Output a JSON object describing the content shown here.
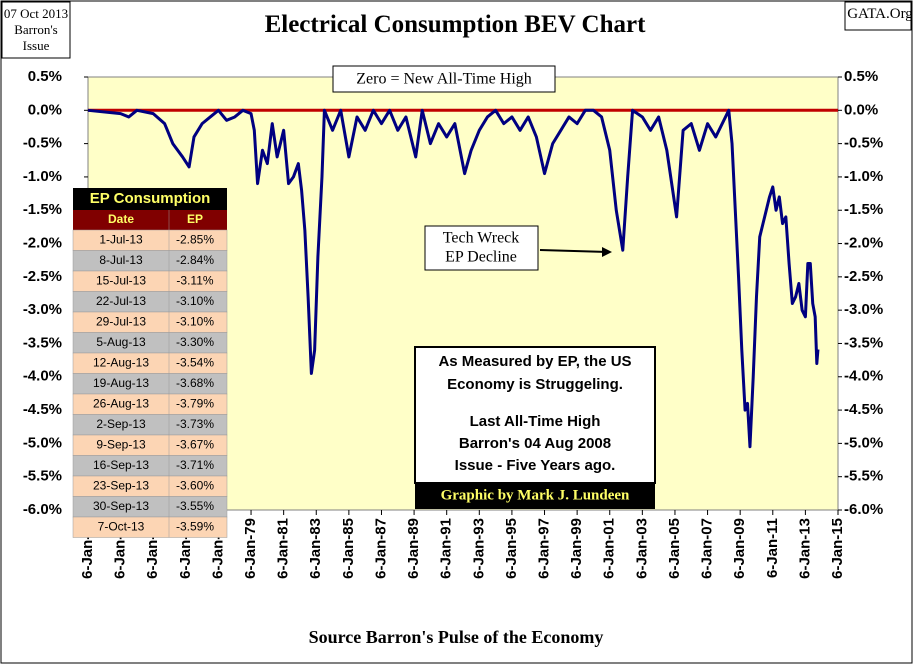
{
  "chart_data": {
    "type": "line",
    "title": "Electrical Consumption BEV Chart",
    "corner_note": [
      "07 Oct 2013",
      "Barron's",
      "Issue"
    ],
    "source_note": "GATA.Org",
    "xlabel": "Source Barron's Pulse of the Economy",
    "zero_note": "Zero = New All-Time High",
    "tech_note": [
      "Tech Wreck",
      "EP Decline"
    ],
    "box_text": [
      "As Measured by EP, the US",
      "Economy is Struggeling.",
      "Last All-Time High",
      "Barron's 04 Aug 2008",
      "Issue - Five Years ago."
    ],
    "credit": "Graphic by Mark J. Lundeen",
    "hline": 0,
    "hline_color": "#c00000",
    "xlim": [
      1969,
      2015
    ],
    "xticks": [
      {
        "value": 1969,
        "label": "6-Jan-69"
      },
      {
        "value": 1971,
        "label": "6-Jan-71"
      },
      {
        "value": 1973,
        "label": "6-Jan-73"
      },
      {
        "value": 1975,
        "label": "6-Jan-75"
      },
      {
        "value": 1977,
        "label": "6-Jan-77"
      },
      {
        "value": 1979,
        "label": "6-Jan-79"
      },
      {
        "value": 1981,
        "label": "6-Jan-81"
      },
      {
        "value": 1983,
        "label": "6-Jan-83"
      },
      {
        "value": 1985,
        "label": "6-Jan-85"
      },
      {
        "value": 1987,
        "label": "6-Jan-87"
      },
      {
        "value": 1989,
        "label": "6-Jan-89"
      },
      {
        "value": 1991,
        "label": "6-Jan-91"
      },
      {
        "value": 1993,
        "label": "6-Jan-93"
      },
      {
        "value": 1995,
        "label": "6-Jan-95"
      },
      {
        "value": 1997,
        "label": "6-Jan-97"
      },
      {
        "value": 1999,
        "label": "6-Jan-99"
      },
      {
        "value": 2001,
        "label": "6-Jan-01"
      },
      {
        "value": 2003,
        "label": "6-Jan-03"
      },
      {
        "value": 2005,
        "label": "6-Jan-05"
      },
      {
        "value": 2007,
        "label": "6-Jan-07"
      },
      {
        "value": 2009,
        "label": "6-Jan-09"
      },
      {
        "value": 2011,
        "label": "6-Jan-11"
      },
      {
        "value": 2013,
        "label": "6-Jan-13"
      },
      {
        "value": 2015,
        "label": "6-Jan-15"
      }
    ],
    "ylim": [
      -6.0,
      0.5
    ],
    "yticks": [
      {
        "value": 0.5,
        "label": "0.5%"
      },
      {
        "value": 0,
        "label": "0.0%"
      },
      {
        "value": -0.5,
        "label": "-0.5%"
      },
      {
        "value": -1,
        "label": "-1.0%"
      },
      {
        "value": -1.5,
        "label": "-1.5%"
      },
      {
        "value": -2,
        "label": "-2.0%"
      },
      {
        "value": -2.5,
        "label": "-2.5%"
      },
      {
        "value": -3,
        "label": "-3.0%"
      },
      {
        "value": -3.5,
        "label": "-3.5%"
      },
      {
        "value": -4,
        "label": "-4.0%"
      },
      {
        "value": -4.5,
        "label": "-4.5%"
      },
      {
        "value": -5,
        "label": "-5.0%"
      },
      {
        "value": -5.5,
        "label": "-5.5%"
      },
      {
        "value": -6,
        "label": "-6.0%"
      }
    ],
    "series": [
      {
        "name": "EP",
        "color": "#000080",
        "x": [
          1969,
          1971,
          1971.5,
          1972,
          1973,
          1973.7,
          1974.2,
          1974.8,
          1975.2,
          1975.5,
          1976,
          1976.5,
          1977,
          1977.5,
          1978,
          1978.5,
          1979,
          1979.2,
          1979.4,
          1979.7,
          1980,
          1980.3,
          1980.6,
          1981,
          1981.3,
          1981.6,
          1981.9,
          1982.1,
          1982.3,
          1982.5,
          1982.7,
          1982.9,
          1983.1,
          1983.35,
          1983.5,
          1984,
          1984.5,
          1985,
          1985.5,
          1986,
          1986.5,
          1987,
          1987.5,
          1988,
          1988.5,
          1989.1,
          1989.5,
          1990,
          1990.5,
          1991,
          1991.5,
          1992.1,
          1992.5,
          1993,
          1993.5,
          1994,
          1994.5,
          1995,
          1995.5,
          1996,
          1996.5,
          1997,
          1997.5,
          1998,
          1998.5,
          1999,
          1999.5,
          2000,
          2000.5,
          2001,
          2001.4,
          2001.8,
          2002.1,
          2002.4,
          2003,
          2003.5,
          2004,
          2004.5,
          2005.1,
          2005.5,
          2006,
          2006.5,
          2007,
          2007.5,
          2008.3,
          2008.5,
          2008.7,
          2008.9,
          2009.1,
          2009.3,
          2009.45,
          2009.6,
          2009.8,
          2010,
          2010.2,
          2010.4,
          2010.6,
          2010.8,
          2011,
          2011.2,
          2011.4,
          2011.6,
          2011.8,
          2012,
          2012.2,
          2012.4,
          2012.6,
          2012.8,
          2013,
          2013.15,
          2013.3,
          2013.45,
          2013.6,
          2013.7,
          2013.77
        ],
        "values": [
          0,
          -0.05,
          -0.1,
          0,
          -0.05,
          -0.2,
          -0.5,
          -0.7,
          -0.85,
          -0.4,
          -0.2,
          -0.1,
          0,
          -0.15,
          -0.1,
          0,
          -0.05,
          -0.3,
          -1.1,
          -0.6,
          -0.8,
          -0.2,
          -0.7,
          -0.3,
          -1.1,
          -1.0,
          -0.8,
          -1.2,
          -1.8,
          -2.8,
          -3.95,
          -3.6,
          -2.2,
          -1.0,
          0,
          -0.3,
          0,
          -0.7,
          -0.1,
          -0.3,
          0,
          -0.2,
          0,
          -0.3,
          -0.1,
          -0.7,
          0,
          -0.5,
          -0.2,
          -0.4,
          -0.2,
          -0.95,
          -0.6,
          -0.3,
          -0.1,
          0,
          -0.2,
          -0.1,
          -0.3,
          -0.1,
          -0.4,
          -0.95,
          -0.5,
          -0.3,
          -0.1,
          -0.2,
          0,
          0,
          -0.1,
          -0.6,
          -1.5,
          -2.1,
          -1.0,
          0,
          -0.1,
          -0.3,
          -0.1,
          -0.6,
          -1.6,
          -0.3,
          -0.2,
          -0.6,
          -0.2,
          -0.4,
          0,
          -0.5,
          -1.5,
          -2.5,
          -3.6,
          -4.5,
          -4.4,
          -5.05,
          -4.0,
          -2.8,
          -1.9,
          -1.7,
          -1.5,
          -1.3,
          -1.15,
          -1.5,
          -1.3,
          -1.7,
          -1.6,
          -2.3,
          -2.9,
          -2.8,
          -2.6,
          -3.0,
          -3.1,
          -2.3,
          -2.3,
          -2.9,
          -3.1,
          -3.8,
          -3.59
        ]
      }
    ],
    "table": {
      "title": "EP Consumption",
      "columns": [
        "Date",
        "EP"
      ],
      "row_colors": [
        "#fcd5b4",
        "#c0c0c0"
      ],
      "header_color": "#800000",
      "title_color": "#000000",
      "head_text_color": "#ffff66",
      "rows": [
        [
          "1-Jul-13",
          "-2.85%"
        ],
        [
          "8-Jul-13",
          "-2.84%"
        ],
        [
          "15-Jul-13",
          "-3.11%"
        ],
        [
          "22-Jul-13",
          "-3.10%"
        ],
        [
          "29-Jul-13",
          "-3.10%"
        ],
        [
          "5-Aug-13",
          "-3.30%"
        ],
        [
          "12-Aug-13",
          "-3.54%"
        ],
        [
          "19-Aug-13",
          "-3.68%"
        ],
        [
          "26-Aug-13",
          "-3.79%"
        ],
        [
          "2-Sep-13",
          "-3.73%"
        ],
        [
          "9-Sep-13",
          "-3.67%"
        ],
        [
          "16-Sep-13",
          "-3.71%"
        ],
        [
          "23-Sep-13",
          "-3.60%"
        ],
        [
          "30-Sep-13",
          "-3.55%"
        ],
        [
          "7-Oct-13",
          "-3.59%"
        ]
      ]
    }
  }
}
